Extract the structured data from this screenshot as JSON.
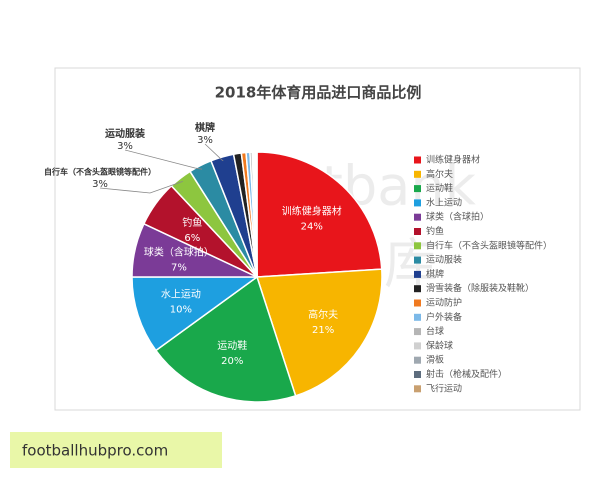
{
  "chart_data": {
    "type": "pie",
    "title": "2018年体育用品进口商品比例",
    "categories": [
      "训练健身器材",
      "高尔夫",
      "运动鞋",
      "水上运动",
      "球类（含球拍）",
      "钓鱼",
      "自行车（不含头盔眼镜等配件）",
      "运动服装",
      "棋牌",
      "滑雪装备（除服装及鞋靴）",
      "运动防护",
      "户外装备",
      "台球",
      "保龄球",
      "滑板",
      "射击（枪械及配件）",
      "飞行运动"
    ],
    "values": [
      24,
      21,
      20,
      10,
      7,
      6,
      3,
      3,
      3,
      1,
      0.6,
      0.5,
      0.3,
      0.2,
      0.2,
      0.1,
      0.1
    ],
    "value_labels": [
      "24%",
      "21%",
      "20%",
      "10%",
      "7%",
      "6%",
      "3%",
      "3%",
      "3%",
      null,
      null,
      null,
      null,
      null,
      null,
      null,
      null
    ],
    "colors": [
      "#e8151b",
      "#f7b500",
      "#19a84b",
      "#1e9fe0",
      "#7b3b97",
      "#b3122c",
      "#8dc63f",
      "#2b8ba3",
      "#1f3f8f",
      "#222222",
      "#f07a20",
      "#7cb9e8",
      "#b5b5b5",
      "#d0d0d0",
      "#9fa8b0",
      "#5d6d7e",
      "#c9a070"
    ],
    "legend": "right",
    "watermark": [
      "sportbank",
      "体银智库"
    ],
    "footer": "footballhubpro.com"
  }
}
